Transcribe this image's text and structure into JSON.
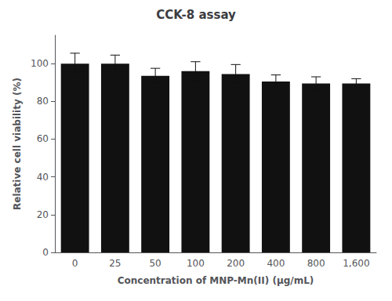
{
  "chart_data": {
    "type": "bar",
    "title": "CCK-8 assay",
    "xlabel": "Concentration of MNP-Mn(II) (μg/mL)",
    "ylabel": "Relative cell viability (%)",
    "categories": [
      "0",
      "25",
      "50",
      "100",
      "200",
      "400",
      "800",
      "1,600"
    ],
    "values": [
      100.0,
      100.0,
      93.5,
      96.0,
      94.5,
      90.5,
      89.5,
      89.5
    ],
    "errors": [
      5.5,
      4.5,
      4.0,
      5.0,
      5.0,
      3.5,
      3.5,
      2.5
    ],
    "color": "#111111",
    "ylim": [
      0,
      115
    ],
    "yticks": [
      0,
      20,
      40,
      60,
      80,
      100
    ],
    "grid": false
  }
}
